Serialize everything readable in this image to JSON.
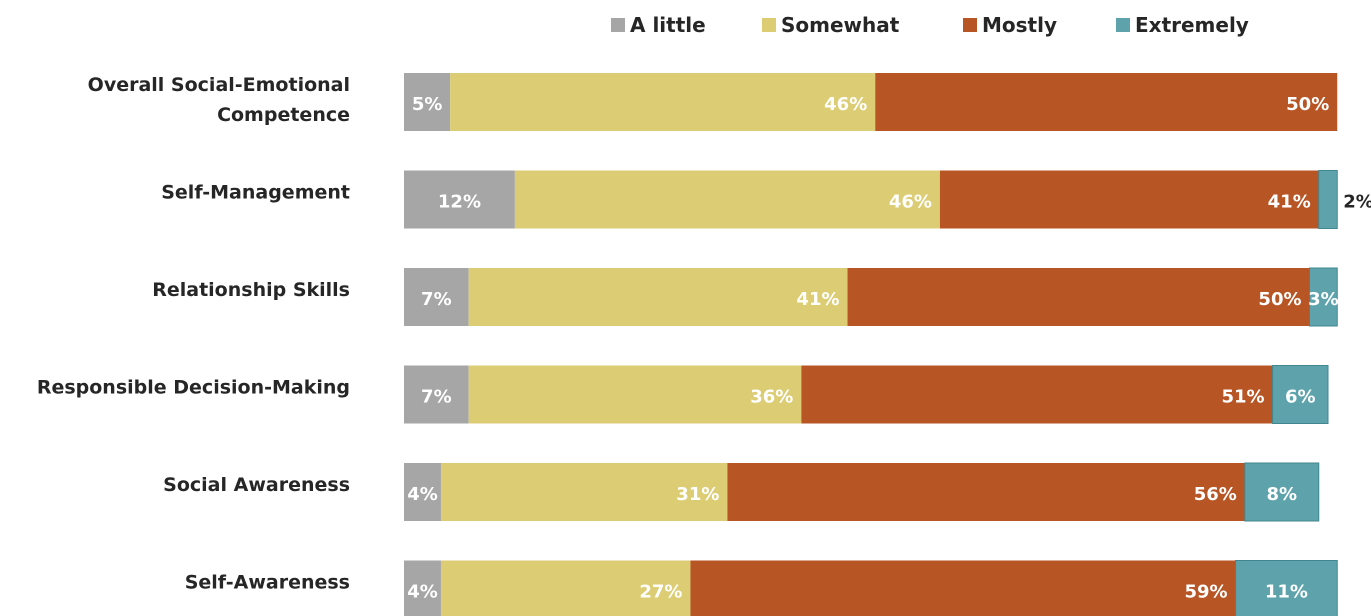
{
  "chart_data": {
    "type": "bar",
    "orientation": "horizontal-stacked-100",
    "categories": [
      [
        "Overall Social-Emotional",
        "Competence"
      ],
      [
        "Self-Management"
      ],
      [
        "Relationship Skills"
      ],
      [
        "Responsible Decision-Making"
      ],
      [
        "Social Awareness"
      ],
      [
        "Self-Awareness"
      ]
    ],
    "series": [
      {
        "name": "A little",
        "color": "#a6a6a6",
        "values": [
          5,
          12,
          7,
          7,
          4,
          4
        ],
        "labels": [
          "5%",
          "12%",
          "7%",
          "7%",
          "4%",
          "4%"
        ]
      },
      {
        "name": "Somewhat",
        "color": "#dccd74",
        "values": [
          46,
          46,
          41,
          36,
          31,
          27
        ],
        "labels": [
          "46%",
          "46%",
          "41%",
          "36%",
          "31%",
          "27%"
        ]
      },
      {
        "name": "Mostly",
        "color": "#b85525",
        "values": [
          50,
          41,
          50,
          51,
          56,
          59
        ],
        "labels": [
          "50%",
          "41%",
          "50%",
          "51%",
          "56%",
          "59%"
        ]
      },
      {
        "name": "Extremely",
        "color": "#5ea3ac",
        "values": [
          0,
          2,
          3,
          6,
          8,
          11
        ],
        "labels": [
          "",
          "2%",
          "3%",
          "6%",
          "8%",
          "11%"
        ]
      }
    ],
    "legend_position": "top",
    "xlim": [
      0,
      101
    ],
    "grid": false
  }
}
